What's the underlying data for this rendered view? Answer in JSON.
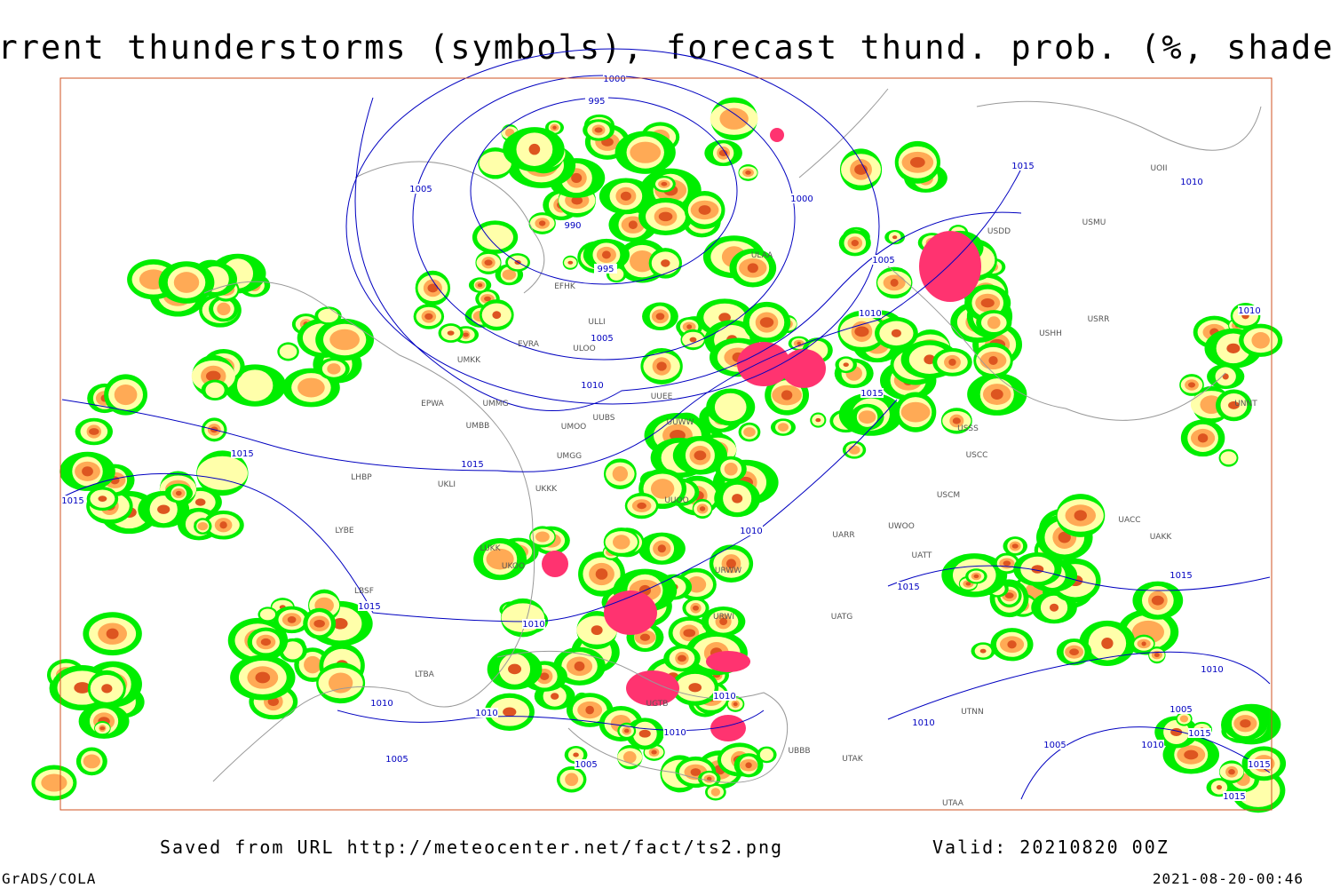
{
  "title": "Current thunderstorms (symbols), forecast thund. prob. (%, shaded)",
  "source": "Saved from URL http://meteocenter.net/fact/ts2.png",
  "valid": "Valid: 20210820 00Z",
  "software": "GrADS/COLA",
  "timestamp": "2021-08-20-00:46",
  "isobar_labels": [
    1000,
    995,
    1005,
    990,
    995,
    1000,
    1005,
    1010,
    1015,
    1010,
    1005,
    1010,
    1015,
    1010,
    1015,
    1015,
    1015,
    1010,
    1015,
    1015,
    1015,
    1010,
    1010,
    1010,
    1010,
    1010,
    1005,
    1005,
    1010,
    1005,
    1010,
    1005,
    1015,
    1015,
    1015,
    1010
  ],
  "stations": [
    "ULLI",
    "ULAA",
    "EFHK",
    "ULOO",
    "EVRA",
    "UMKK",
    "EPWA",
    "UMMG",
    "UMBB",
    "UUEE",
    "UUWW",
    "UUBS",
    "UMOO",
    "UMGG",
    "UKLI",
    "LHBP",
    "LYBE",
    "LBSF",
    "LTBA",
    "UKKK",
    "UUOO",
    "URWW",
    "URWI",
    "UGTB",
    "UBBB",
    "LUKK",
    "UKOO",
    "USSS",
    "USCC",
    "USCM",
    "UACC",
    "UAKK",
    "UATT",
    "UWOO",
    "UARR",
    "UATG",
    "UTAA",
    "UTAK",
    "UTNN",
    "UNNT",
    "USRR",
    "UOII",
    "USDD",
    "USMU",
    "USHH"
  ]
}
